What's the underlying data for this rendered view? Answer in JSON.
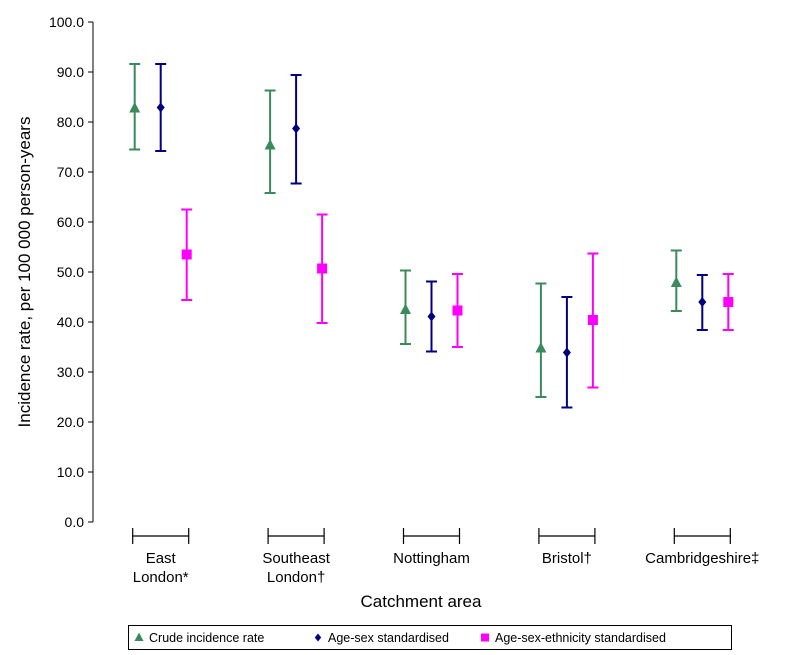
{
  "chart_data": {
    "type": "scatter",
    "title": "",
    "xlabel": "Catchment area",
    "ylabel": "Incidence rate, per 100 000 person-years",
    "ylim": [
      0,
      100
    ],
    "yticks": [
      "0.0",
      "10.0",
      "20.0",
      "30.0",
      "40.0",
      "50.0",
      "60.0",
      "70.0",
      "80.0",
      "90.0",
      "100.0"
    ],
    "categories": [
      [
        "East",
        "London*"
      ],
      [
        "Southeast",
        "London†"
      ],
      [
        "Nottingham"
      ],
      [
        "Bristol†"
      ],
      [
        "Cambridgeshire‡"
      ]
    ],
    "grid": false,
    "legend_position": "bottom",
    "series": [
      {
        "name": "Crude incidence rate",
        "marker": "triangle",
        "color": "#3a8a5c",
        "values": [
          82.8,
          75.4,
          42.5,
          34.8,
          47.9
        ],
        "lower": [
          74.5,
          65.8,
          35.6,
          25.0,
          42.2
        ],
        "upper": [
          91.6,
          86.3,
          50.3,
          47.7,
          54.3
        ]
      },
      {
        "name": "Age-sex standardised",
        "marker": "diamond",
        "color": "#000080",
        "values": [
          82.9,
          78.7,
          41.1,
          33.9,
          44.0
        ],
        "lower": [
          74.2,
          67.7,
          34.1,
          22.9,
          38.4
        ],
        "upper": [
          91.6,
          89.4,
          48.1,
          45.0,
          49.4
        ]
      },
      {
        "name": "Age-sex-ethnicity standardised",
        "marker": "square",
        "color": "#ff00ff",
        "values": [
          53.5,
          50.7,
          42.3,
          40.4,
          44.0
        ],
        "lower": [
          44.4,
          39.8,
          35.0,
          26.9,
          38.4
        ],
        "upper": [
          62.5,
          61.5,
          49.6,
          53.7,
          49.6
        ]
      }
    ]
  }
}
